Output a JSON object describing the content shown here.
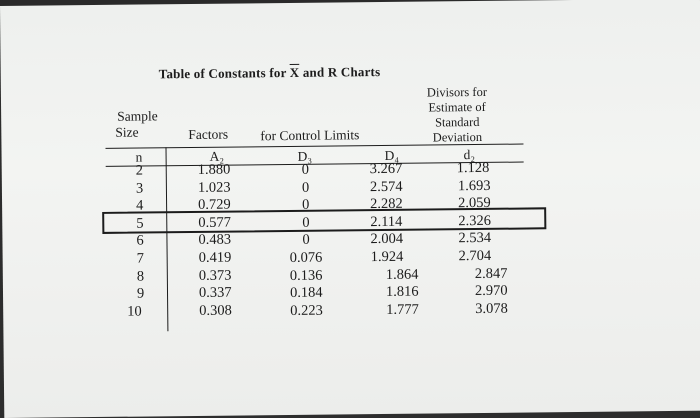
{
  "table": {
    "title_prefix": "Table of Constants for ",
    "title_x": "X",
    "title_mid": " and R Charts",
    "header": {
      "divisors_line1": "Divisors for",
      "divisors_line2": "Estimate of",
      "divisors_line3": "Standard",
      "divisors_line4": "Deviation",
      "sample_line1": "Sample",
      "sample_line2": "Size",
      "factors": "Factors",
      "for_control_limits": "for Control Limits",
      "col_n": "n",
      "col_a2": "A₂",
      "col_d3": "D₃",
      "col_d4": "D₄",
      "col_d2": "d₂"
    },
    "rows": [
      {
        "n": "2",
        "a2": "1.880",
        "d3": "0",
        "d4": "3.267",
        "d2": "1.128"
      },
      {
        "n": "3",
        "a2": "1.023",
        "d3": "0",
        "d4": "2.574",
        "d2": "1.693"
      },
      {
        "n": "4",
        "a2": "0.729",
        "d3": "0",
        "d4": "2.282",
        "d2": "2.059"
      },
      {
        "n": "5",
        "a2": "0.577",
        "d3": "0",
        "d4": "2.114",
        "d2": "2.326"
      },
      {
        "n": "6",
        "a2": "0.483",
        "d3": "0",
        "d4": "2.004",
        "d2": "2.534"
      },
      {
        "n": "7",
        "a2": "0.419",
        "d3": "0.076",
        "d4": "1.924",
        "d2": "2.704"
      },
      {
        "n": "8",
        "a2": "0.373",
        "d3": "0.136",
        "d4": "1.864",
        "d2": "2.847"
      },
      {
        "n": "9",
        "a2": "0.337",
        "d3": "0.184",
        "d4": "1.816",
        "d2": "2.970"
      },
      {
        "n": "10",
        "a2": "0.308",
        "d3": "0.223",
        "d4": "1.777",
        "d2": "3.078"
      }
    ],
    "highlighted_row_n": "5"
  },
  "colors": {
    "paper": "#f0f1ef",
    "ink": "#1c1c1c",
    "bleed_through": "#c9cbc8"
  }
}
